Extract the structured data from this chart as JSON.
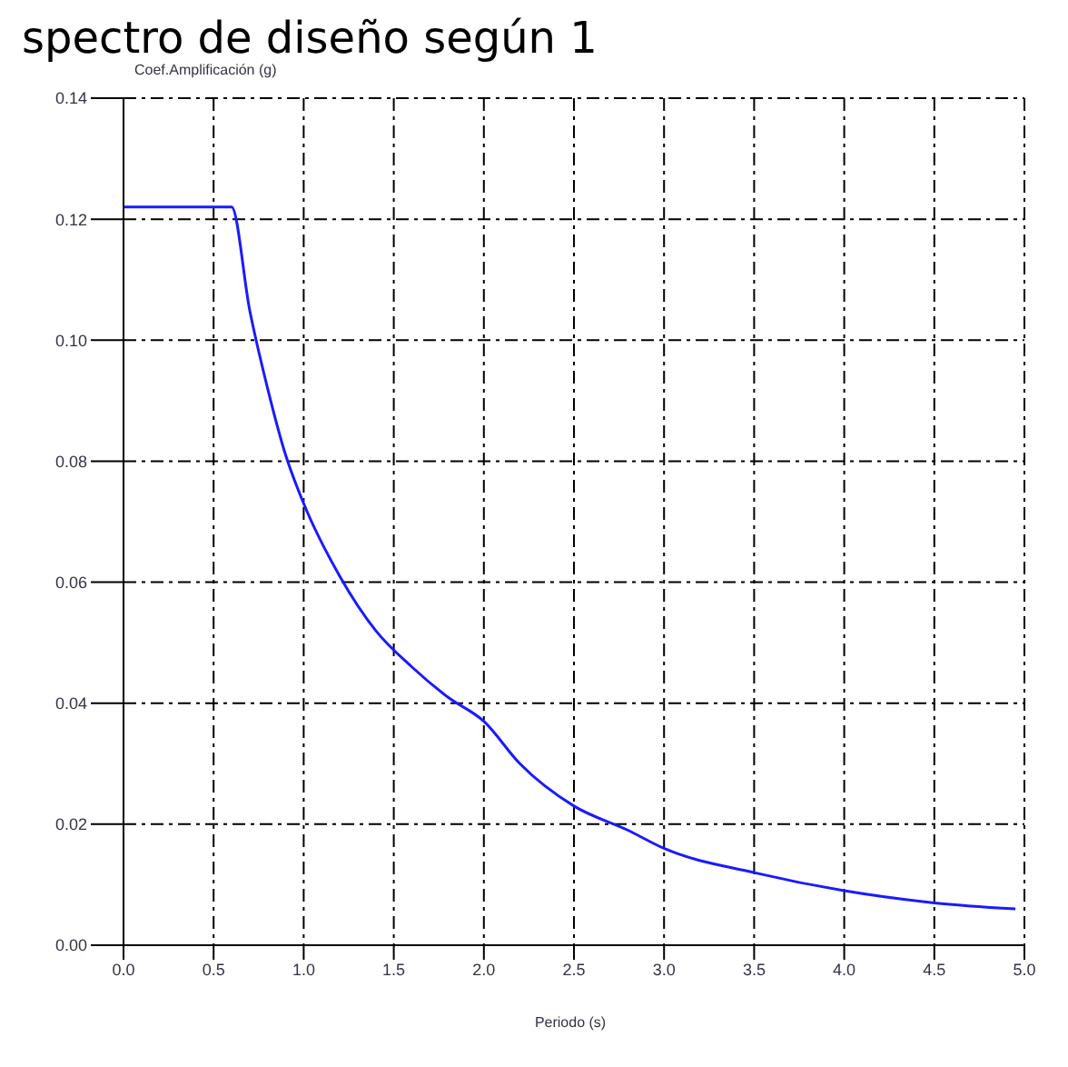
{
  "chart_data": {
    "type": "line",
    "title": "spectro de diseño según 1",
    "xlabel": "Periodo (s)",
    "ylabel": "Coef.Amplificación (g)",
    "x": [
      0,
      0.6,
      0.7,
      0.8,
      0.9,
      1.0,
      1.2,
      1.4,
      1.6,
      1.8,
      2.0,
      2.2,
      2.5,
      2.8,
      3.0,
      3.5,
      4.0,
      4.5,
      4.95
    ],
    "series": [
      {
        "color": "#1a1aff",
        "values": [
          0.122,
          0.122,
          0.105,
          0.092,
          0.081,
          0.073,
          0.061,
          0.052,
          0.046,
          0.041,
          0.037,
          0.03,
          0.023,
          0.019,
          0.016,
          0.012,
          0.009,
          0.007,
          0.006
        ]
      }
    ],
    "xlim": [
      0,
      5
    ],
    "xticks": [
      {
        "value": 0,
        "label": "0.0"
      },
      {
        "value": 0.5,
        "label": "0.5"
      },
      {
        "value": 1,
        "label": "1.0"
      },
      {
        "value": 1.5,
        "label": "1.5"
      },
      {
        "value": 2,
        "label": "2.0"
      },
      {
        "value": 2.5,
        "label": "2.5"
      },
      {
        "value": 3,
        "label": "3.0"
      },
      {
        "value": 3.5,
        "label": "3.5"
      },
      {
        "value": 4,
        "label": "4.0"
      },
      {
        "value": 4.5,
        "label": "4.5"
      },
      {
        "value": 5,
        "label": "5.0"
      }
    ],
    "ylim": [
      0,
      0.14
    ],
    "yticks": [
      {
        "value": 0,
        "label": "0.00"
      },
      {
        "value": 0.02,
        "label": "0.02"
      },
      {
        "value": 0.04,
        "label": "0.04"
      },
      {
        "value": 0.06,
        "label": "0.06"
      },
      {
        "value": 0.08,
        "label": "0.08"
      },
      {
        "value": 0.1,
        "label": "0.10"
      },
      {
        "value": 0.12,
        "label": "0.12"
      },
      {
        "value": 0.14,
        "label": "0.14"
      }
    ],
    "grid": true,
    "legend": false,
    "marker": "none",
    "line_style": "solid"
  }
}
